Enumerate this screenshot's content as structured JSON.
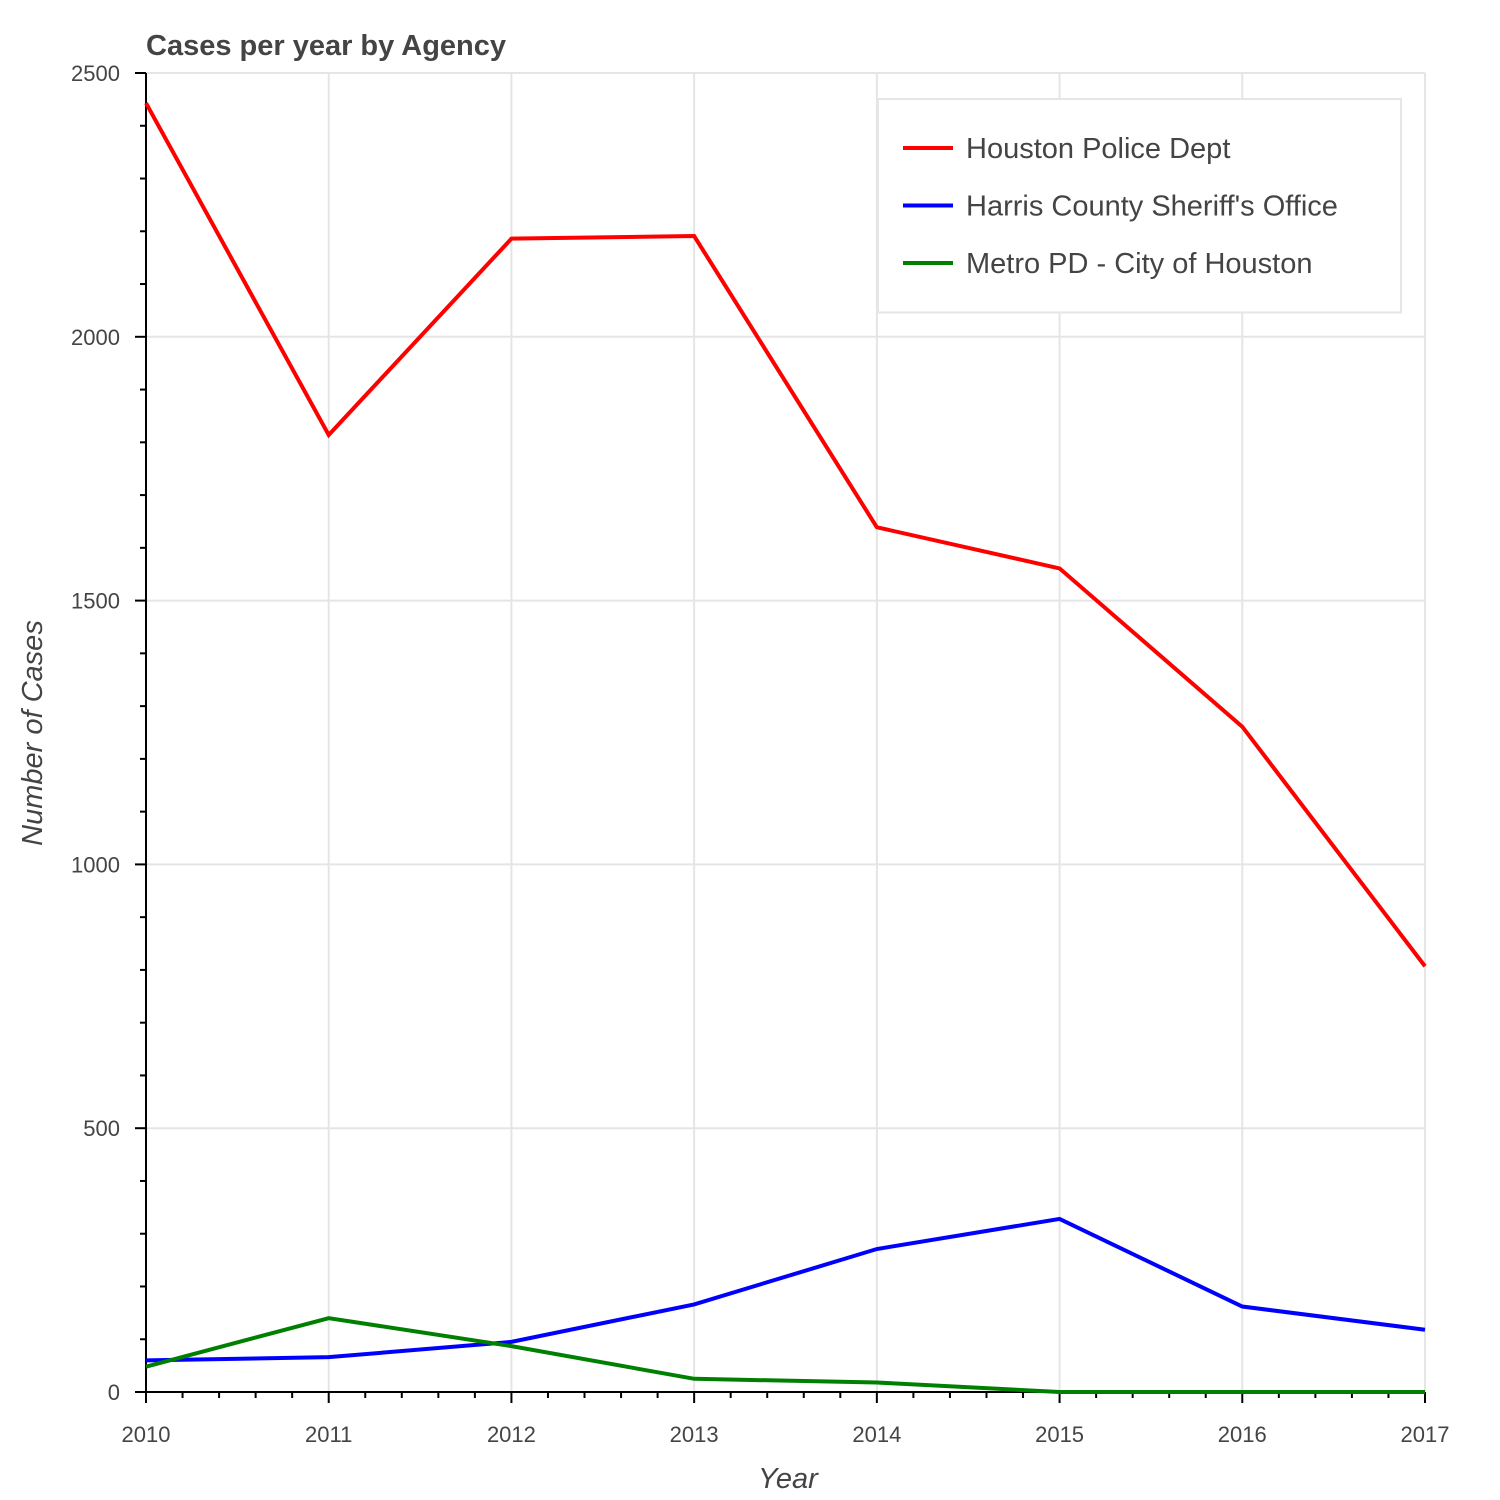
{
  "chart_data": {
    "type": "line",
    "title": "Cases per year by Agency",
    "xlabel": "Year",
    "ylabel": "Number of Cases",
    "x": [
      2010,
      2011,
      2012,
      2013,
      2014,
      2015,
      2016,
      2017
    ],
    "xlim": [
      2010,
      2017
    ],
    "ylim": [
      0,
      2500
    ],
    "yticks": [
      0,
      500,
      1000,
      1500,
      2000,
      2500
    ],
    "grid": true,
    "legend_position": "top-right",
    "series": [
      {
        "name": "Houston Police Dept",
        "color": "#ff0000",
        "values": [
          2443,
          1814,
          2186,
          2191,
          1639,
          1561,
          1261,
          807
        ]
      },
      {
        "name": "Harris County Sheriff's Office",
        "color": "#0000ff",
        "values": [
          60,
          66,
          95,
          166,
          271,
          328,
          162,
          118
        ]
      },
      {
        "name": "Metro PD - City of Houston",
        "color": "#008000",
        "values": [
          48,
          140,
          87,
          25,
          18,
          0,
          0,
          0
        ]
      }
    ]
  }
}
